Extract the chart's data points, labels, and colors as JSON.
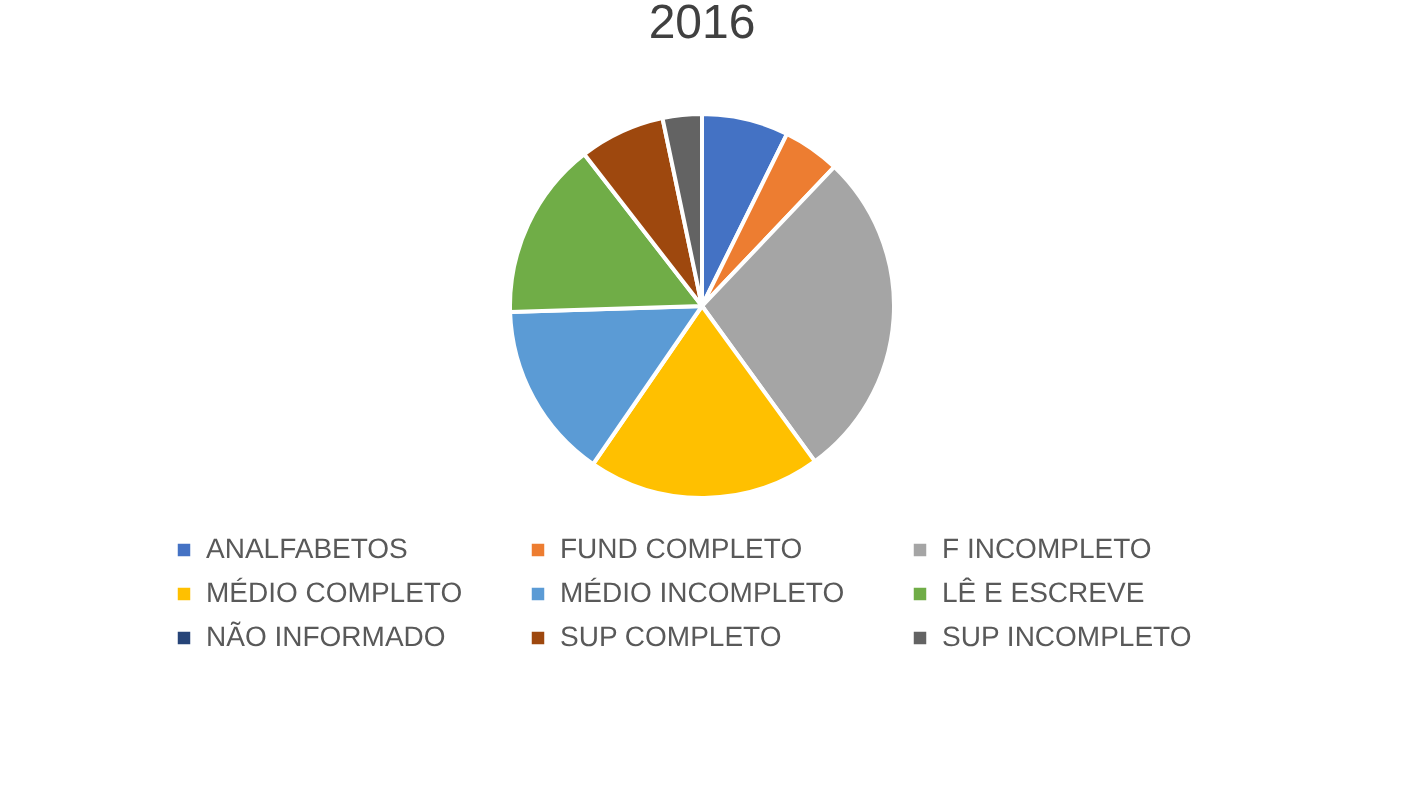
{
  "chart_data": {
    "type": "pie",
    "title": "2016",
    "categories": [
      "ANALFABETOS",
      "FUND COMPLETO",
      "F INCOMPLETO",
      "MÉDIO COMPLETO",
      "MÉDIO INCOMPLETO",
      "LÊ E ESCREVE",
      "NÃO INFORMADO",
      "SUP COMPLETO",
      "SUP INCOMPLETO"
    ],
    "values": [
      7.3,
      4.8,
      27.9,
      19.6,
      14.9,
      15.0,
      0,
      7.2,
      3.3
    ],
    "colors": [
      "#4472c4",
      "#ed7d31",
      "#a5a5a5",
      "#ffc000",
      "#5b9bd5",
      "#70ad47",
      "#264478",
      "#9e480e",
      "#636363"
    ],
    "legend": "bottom"
  }
}
